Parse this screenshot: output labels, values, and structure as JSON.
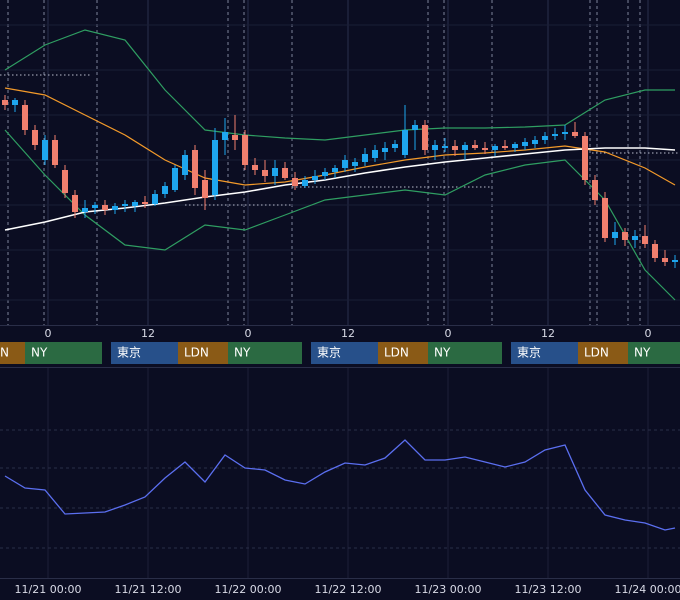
{
  "chart_data": [
    {
      "type": "candlestick",
      "up_color": "#1ea6ee",
      "down_color": "#f07f6e",
      "ylim": [
        0,
        325
      ],
      "open": [
        225,
        220,
        220,
        195,
        165,
        185,
        155,
        130,
        113,
        117,
        120,
        115,
        119,
        119,
        123,
        121,
        131,
        135,
        150,
        175,
        145,
        130,
        185,
        190,
        190,
        160,
        155,
        149,
        157,
        147,
        139,
        145,
        149,
        153,
        157,
        159,
        163,
        167,
        173,
        177,
        170,
        195,
        200,
        175,
        177,
        179,
        175,
        180,
        177,
        175,
        179,
        177,
        179,
        181,
        185,
        189,
        191,
        193,
        189,
        145,
        127,
        87,
        93,
        85,
        89,
        81,
        67,
        63
      ],
      "high": [
        230,
        227,
        225,
        200,
        190,
        190,
        160,
        135,
        125,
        123,
        125,
        122,
        125,
        125,
        129,
        135,
        143,
        160,
        175,
        180,
        155,
        197,
        207,
        210,
        195,
        167,
        165,
        165,
        163,
        153,
        149,
        155,
        157,
        160,
        170,
        167,
        177,
        180,
        183,
        185,
        220,
        205,
        205,
        185,
        187,
        185,
        183,
        185,
        183,
        181,
        185,
        183,
        187,
        189,
        193,
        197,
        200,
        203,
        193,
        150,
        133,
        103,
        97,
        95,
        100,
        85,
        75,
        70
      ],
      "low": [
        215,
        213,
        190,
        175,
        160,
        157,
        127,
        107,
        107,
        111,
        110,
        111,
        113,
        113,
        117,
        119,
        127,
        133,
        145,
        130,
        115,
        125,
        170,
        175,
        155,
        150,
        143,
        140,
        145,
        135,
        137,
        141,
        145,
        147,
        153,
        153,
        159,
        163,
        165,
        173,
        167,
        175,
        170,
        165,
        173,
        169,
        165,
        175,
        171,
        169,
        175,
        173,
        175,
        177,
        181,
        185,
        185,
        187,
        140,
        120,
        83,
        80,
        79,
        77,
        77,
        63,
        59,
        57
      ],
      "close": [
        220,
        225,
        195,
        180,
        185,
        160,
        132,
        113,
        117,
        120,
        115,
        119,
        121,
        123,
        121,
        131,
        139,
        157,
        170,
        137,
        127,
        185,
        193,
        185,
        160,
        155,
        149,
        157,
        147,
        139,
        145,
        149,
        153,
        157,
        165,
        163,
        171,
        175,
        177,
        181,
        195,
        200,
        175,
        180,
        179,
        175,
        180,
        177,
        175,
        179,
        177,
        181,
        183,
        185,
        189,
        191,
        193,
        189,
        145,
        125,
        87,
        93,
        85,
        89,
        81,
        67,
        63,
        65
      ],
      "overlays": [
        {
          "color": "#2f9e62",
          "x": [
            0,
            4,
            8,
            12,
            16,
            20,
            24,
            28,
            32,
            36,
            40,
            44,
            48,
            52,
            56,
            60,
            64,
            67
          ],
          "values": [
            255,
            280,
            295,
            285,
            235,
            195,
            190,
            187,
            185,
            190,
            195,
            197,
            197,
            198,
            200,
            225,
            235,
            235
          ]
        },
        {
          "color": "#2f9e62",
          "x": [
            0,
            4,
            8,
            12,
            16,
            20,
            24,
            28,
            32,
            36,
            40,
            44,
            48,
            52,
            56,
            60,
            64,
            67
          ],
          "values": [
            195,
            150,
            110,
            80,
            75,
            100,
            95,
            110,
            125,
            130,
            135,
            130,
            150,
            160,
            165,
            125,
            55,
            25
          ]
        },
        {
          "color": "#f39a2a",
          "x": [
            0,
            4,
            8,
            12,
            16,
            20,
            24,
            28,
            32,
            36,
            40,
            44,
            48,
            52,
            56,
            60,
            64,
            67
          ],
          "values": [
            237,
            230,
            210,
            190,
            165,
            147,
            140,
            143,
            150,
            158,
            165,
            170,
            172,
            175,
            179,
            173,
            157,
            140
          ]
        },
        {
          "color": "#ffffff",
          "x": [
            0,
            4,
            8,
            12,
            16,
            20,
            24,
            28,
            32,
            36,
            40,
            44,
            48,
            52,
            56,
            60,
            64,
            67
          ],
          "values": [
            95,
            103,
            113,
            117,
            122,
            128,
            133,
            140,
            145,
            152,
            158,
            163,
            167,
            171,
            175,
            177,
            177,
            175
          ]
        }
      ]
    },
    {
      "type": "line",
      "color": "#5b6ff0",
      "ylim": [
        0,
        210
      ],
      "x": [
        0,
        2,
        4,
        6,
        8,
        10,
        12,
        14,
        16,
        18,
        20,
        22,
        24,
        26,
        28,
        30,
        32,
        34,
        36,
        38,
        40,
        42,
        44,
        46,
        48,
        50,
        52,
        54,
        56,
        58,
        60,
        62,
        64,
        66,
        67
      ],
      "values": [
        102,
        90,
        88,
        64,
        65,
        66,
        73,
        81,
        100,
        116,
        96,
        123,
        110,
        108,
        98,
        94,
        106,
        115,
        113,
        120,
        138,
        118,
        118,
        121,
        116,
        111,
        116,
        128,
        133,
        88,
        63,
        58,
        55,
        48,
        50
      ]
    }
  ],
  "hour_labels": [
    "0",
    "12",
    "0",
    "12",
    "0",
    "12",
    "0"
  ],
  "date_labels": [
    "11/21 00:00",
    "11/21 12:00",
    "11/22 00:00",
    "11/22 12:00",
    "11/23 00:00",
    "11/23 12:00",
    "11/24 00:00"
  ],
  "sessions": [
    {
      "label": "N",
      "color": "#8a5a16"
    },
    {
      "label": "NY",
      "color": "#2b6a42"
    },
    {
      "label": "東京",
      "color": "#27508a"
    },
    {
      "label": "LDN",
      "color": "#8a5a16"
    },
    {
      "label": "NY",
      "color": "#2b6a42"
    },
    {
      "label": "東京",
      "color": "#27508a"
    },
    {
      "label": "LDN",
      "color": "#8a5a16"
    },
    {
      "label": "NY",
      "color": "#2b6a42"
    },
    {
      "label": "東京",
      "color": "#27508a"
    },
    {
      "label": "LDN",
      "color": "#8a5a16"
    },
    {
      "label": "NY",
      "color": "#2b6a42"
    }
  ]
}
